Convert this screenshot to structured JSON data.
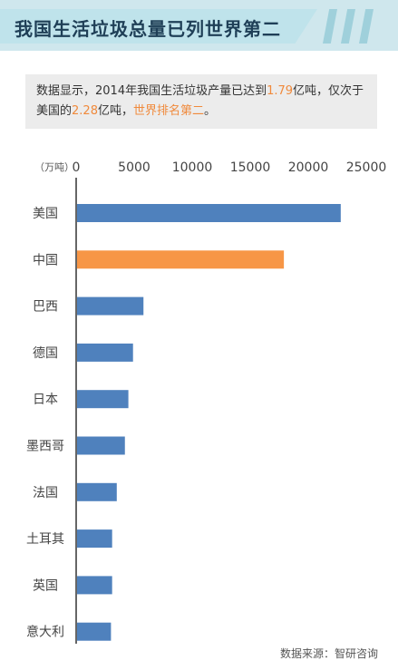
{
  "title": "我国生活垃圾总量已列世界第二",
  "note": {
    "part1": "数据显示，2014年我国生活垃圾产量已达到",
    "value1": "1.79",
    "part2": "亿吨，仅次于美国的",
    "value2": "2.28",
    "part3": "亿吨，",
    "part4": "世界排名第二",
    "part5": "。"
  },
  "chart_data": {
    "type": "bar",
    "orientation": "horizontal",
    "unit_label": "（万吨）",
    "categories": [
      "美国",
      "中国",
      "巴西",
      "德国",
      "日本",
      "墨西哥",
      "法国",
      "土耳其",
      "英国",
      "意大利"
    ],
    "values": [
      22800,
      17900,
      5800,
      4900,
      4500,
      4200,
      3500,
      3100,
      3100,
      3000
    ],
    "xlim": [
      0,
      25000
    ],
    "xticks": [
      "0",
      "5000",
      "10000",
      "15000",
      "20000",
      "25000"
    ],
    "colors": {
      "default": "#4f81bd",
      "highlight": "#f79646"
    },
    "highlight_index": 1
  },
  "source": "数据来源：智研咨询"
}
